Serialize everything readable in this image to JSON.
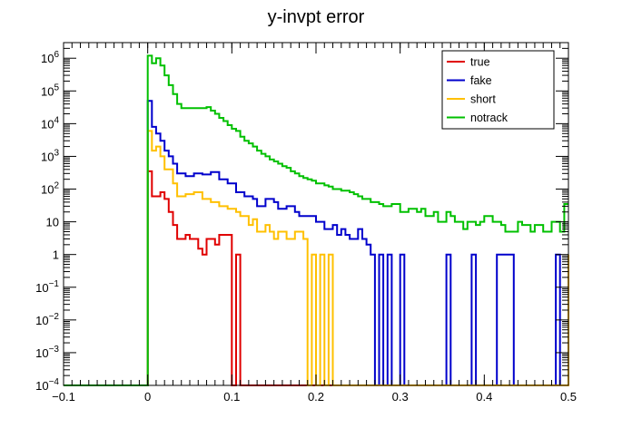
{
  "chart_data": {
    "type": "line",
    "title": "y-invpt error",
    "xlabel": "",
    "ylabel": "",
    "xlim": [
      -0.1,
      0.5
    ],
    "ylim": [
      0.0001,
      3000000
    ],
    "yscale": "log",
    "grid": false,
    "legend_position": "top-right",
    "x_ticks": [
      {
        "value": -0.1,
        "label": "−0.1"
      },
      {
        "value": 0,
        "label": "0"
      },
      {
        "value": 0.1,
        "label": "0.1"
      },
      {
        "value": 0.2,
        "label": "0.2"
      },
      {
        "value": 0.3,
        "label": "0.3"
      },
      {
        "value": 0.4,
        "label": "0.4"
      },
      {
        "value": 0.5,
        "label": "0.5"
      }
    ],
    "y_ticks": [
      {
        "value": 0.0001,
        "base": "10",
        "exp": "−4"
      },
      {
        "value": 0.001,
        "base": "10",
        "exp": "−3"
      },
      {
        "value": 0.01,
        "base": "10",
        "exp": "−2"
      },
      {
        "value": 0.1,
        "base": "10",
        "exp": "−1"
      },
      {
        "value": 1,
        "base": "1",
        "exp": ""
      },
      {
        "value": 10,
        "base": "10",
        "exp": ""
      },
      {
        "value": 100,
        "base": "10",
        "exp": "2"
      },
      {
        "value": 1000,
        "base": "10",
        "exp": "3"
      },
      {
        "value": 10000,
        "base": "10",
        "exp": "4"
      },
      {
        "value": 100000,
        "base": "10",
        "exp": "5"
      },
      {
        "value": 1000000,
        "base": "10",
        "exp": "6"
      }
    ],
    "series": [
      {
        "name": "true",
        "color": "#e00000",
        "points": [
          [
            0.0,
            350
          ],
          [
            0.005,
            60
          ],
          [
            0.01,
            60
          ],
          [
            0.015,
            80
          ],
          [
            0.02,
            50
          ],
          [
            0.025,
            20
          ],
          [
            0.03,
            8
          ],
          [
            0.035,
            3
          ],
          [
            0.045,
            4
          ],
          [
            0.05,
            3
          ],
          [
            0.06,
            1.5
          ],
          [
            0.065,
            1
          ],
          [
            0.07,
            3
          ],
          [
            0.08,
            2
          ],
          [
            0.085,
            4
          ],
          [
            0.095,
            4
          ],
          [
            0.1,
            0.0001
          ],
          [
            0.105,
            1
          ],
          [
            0.11,
            0.0001
          ]
        ]
      },
      {
        "name": "fake",
        "color": "#0000cc",
        "points": [
          [
            0.0,
            50000
          ],
          [
            0.005,
            8000
          ],
          [
            0.01,
            5000
          ],
          [
            0.015,
            3000
          ],
          [
            0.02,
            1500
          ],
          [
            0.025,
            1000
          ],
          [
            0.03,
            600
          ],
          [
            0.035,
            300
          ],
          [
            0.045,
            250
          ],
          [
            0.055,
            300
          ],
          [
            0.065,
            280
          ],
          [
            0.075,
            330
          ],
          [
            0.085,
            200
          ],
          [
            0.095,
            150
          ],
          [
            0.105,
            80
          ],
          [
            0.115,
            60
          ],
          [
            0.125,
            50
          ],
          [
            0.13,
            30
          ],
          [
            0.14,
            50
          ],
          [
            0.15,
            40
          ],
          [
            0.155,
            25
          ],
          [
            0.165,
            30
          ],
          [
            0.175,
            20
          ],
          [
            0.18,
            15
          ],
          [
            0.2,
            10
          ],
          [
            0.21,
            6
          ],
          [
            0.22,
            8
          ],
          [
            0.225,
            4
          ],
          [
            0.23,
            6
          ],
          [
            0.235,
            4
          ],
          [
            0.24,
            3
          ],
          [
            0.25,
            6
          ],
          [
            0.255,
            3
          ],
          [
            0.26,
            2
          ],
          [
            0.265,
            1
          ],
          [
            0.27,
            0.0001
          ],
          [
            0.275,
            1
          ],
          [
            0.28,
            0.0001
          ],
          [
            0.285,
            1
          ],
          [
            0.29,
            0.0001
          ],
          [
            0.3,
            1
          ],
          [
            0.305,
            0.0001
          ],
          [
            0.355,
            1
          ],
          [
            0.36,
            0.0001
          ],
          [
            0.385,
            1
          ],
          [
            0.39,
            0.0001
          ],
          [
            0.415,
            1
          ],
          [
            0.435,
            0.0001
          ],
          [
            0.485,
            1
          ],
          [
            0.49,
            0.0001
          ],
          [
            0.5,
            0.0001
          ]
        ]
      },
      {
        "name": "short",
        "color": "#ffc000",
        "points": [
          [
            0.0,
            6000
          ],
          [
            0.005,
            1500
          ],
          [
            0.01,
            2000
          ],
          [
            0.015,
            1000
          ],
          [
            0.02,
            400
          ],
          [
            0.025,
            400
          ],
          [
            0.03,
            150
          ],
          [
            0.035,
            60
          ],
          [
            0.045,
            70
          ],
          [
            0.055,
            80
          ],
          [
            0.065,
            50
          ],
          [
            0.075,
            40
          ],
          [
            0.085,
            30
          ],
          [
            0.095,
            25
          ],
          [
            0.105,
            20
          ],
          [
            0.11,
            15
          ],
          [
            0.12,
            8
          ],
          [
            0.125,
            12
          ],
          [
            0.13,
            5
          ],
          [
            0.14,
            8
          ],
          [
            0.145,
            5
          ],
          [
            0.15,
            3
          ],
          [
            0.155,
            5
          ],
          [
            0.165,
            3
          ],
          [
            0.175,
            5
          ],
          [
            0.185,
            3
          ],
          [
            0.19,
            0.0001
          ],
          [
            0.195,
            1
          ],
          [
            0.2,
            0.0001
          ],
          [
            0.205,
            1
          ],
          [
            0.21,
            0.0001
          ],
          [
            0.215,
            1
          ],
          [
            0.22,
            0.0001
          ],
          [
            0.5,
            1
          ]
        ]
      },
      {
        "name": "notrack",
        "color": "#00c000",
        "points": [
          [
            0.0,
            1200000
          ],
          [
            0.005,
            700000
          ],
          [
            0.01,
            1000000
          ],
          [
            0.015,
            600000
          ],
          [
            0.02,
            300000
          ],
          [
            0.025,
            150000
          ],
          [
            0.03,
            80000
          ],
          [
            0.035,
            40000
          ],
          [
            0.04,
            30000
          ],
          [
            0.07,
            32000
          ],
          [
            0.075,
            25000
          ],
          [
            0.08,
            20000
          ],
          [
            0.085,
            15000
          ],
          [
            0.09,
            12000
          ],
          [
            0.095,
            9000
          ],
          [
            0.1,
            7000
          ],
          [
            0.105,
            6000
          ],
          [
            0.11,
            4000
          ],
          [
            0.115,
            3000
          ],
          [
            0.12,
            2500
          ],
          [
            0.125,
            2000
          ],
          [
            0.13,
            1500
          ],
          [
            0.135,
            1200
          ],
          [
            0.14,
            1000
          ],
          [
            0.145,
            800
          ],
          [
            0.15,
            700
          ],
          [
            0.155,
            600
          ],
          [
            0.16,
            500
          ],
          [
            0.165,
            450
          ],
          [
            0.17,
            350
          ],
          [
            0.175,
            300
          ],
          [
            0.18,
            250
          ],
          [
            0.185,
            220
          ],
          [
            0.19,
            200
          ],
          [
            0.195,
            180
          ],
          [
            0.2,
            150
          ],
          [
            0.21,
            130
          ],
          [
            0.215,
            120
          ],
          [
            0.22,
            100
          ],
          [
            0.23,
            90
          ],
          [
            0.24,
            80
          ],
          [
            0.245,
            70
          ],
          [
            0.25,
            60
          ],
          [
            0.255,
            50
          ],
          [
            0.265,
            40
          ],
          [
            0.275,
            35
          ],
          [
            0.28,
            30
          ],
          [
            0.29,
            35
          ],
          [
            0.3,
            20
          ],
          [
            0.31,
            25
          ],
          [
            0.32,
            20
          ],
          [
            0.325,
            25
          ],
          [
            0.33,
            15
          ],
          [
            0.34,
            20
          ],
          [
            0.345,
            10
          ],
          [
            0.355,
            20
          ],
          [
            0.36,
            15
          ],
          [
            0.365,
            10
          ],
          [
            0.375,
            6
          ],
          [
            0.38,
            10
          ],
          [
            0.39,
            8
          ],
          [
            0.395,
            10
          ],
          [
            0.4,
            15
          ],
          [
            0.41,
            10
          ],
          [
            0.42,
            8
          ],
          [
            0.425,
            5
          ],
          [
            0.44,
            10
          ],
          [
            0.445,
            8
          ],
          [
            0.455,
            5
          ],
          [
            0.46,
            8
          ],
          [
            0.47,
            5
          ],
          [
            0.48,
            10
          ],
          [
            0.49,
            5
          ],
          [
            0.495,
            35
          ],
          [
            0.5,
            35
          ]
        ]
      }
    ]
  }
}
